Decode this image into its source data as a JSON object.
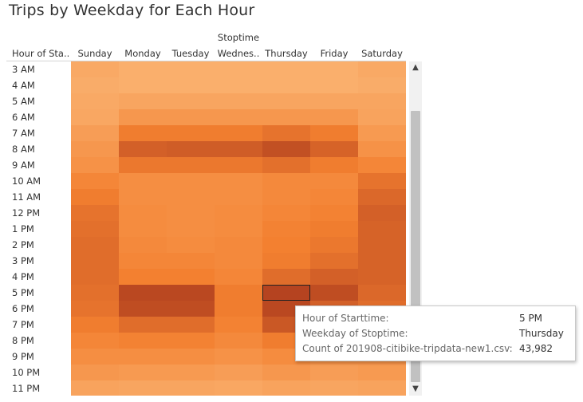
{
  "title": "Trips by Weekday for Each Hour",
  "chart_data": {
    "type": "heatmap",
    "column_group_label": "Stoptime",
    "row_header": "Hour of Sta..",
    "columns": [
      "Sunday",
      "Monday",
      "Tuesday",
      "Wednes..",
      "Thursday",
      "Friday",
      "Saturday"
    ],
    "rows": [
      "3 AM",
      "4 AM",
      "5 AM",
      "6 AM",
      "7 AM",
      "8 AM",
      "9 AM",
      "10 AM",
      "11 AM",
      "12 PM",
      "1 PM",
      "2 PM",
      "3 PM",
      "4 PM",
      "5 PM",
      "6 PM",
      "7 PM",
      "8 PM",
      "9 PM",
      "10 PM",
      "11 PM"
    ],
    "values": [
      [
        0.25,
        0.2,
        0.2,
        0.2,
        0.2,
        0.2,
        0.25
      ],
      [
        0.22,
        0.2,
        0.2,
        0.2,
        0.2,
        0.2,
        0.22
      ],
      [
        0.25,
        0.28,
        0.28,
        0.28,
        0.28,
        0.28,
        0.28
      ],
      [
        0.27,
        0.4,
        0.4,
        0.4,
        0.4,
        0.4,
        0.3
      ],
      [
        0.35,
        0.62,
        0.62,
        0.62,
        0.68,
        0.62,
        0.38
      ],
      [
        0.4,
        0.8,
        0.82,
        0.82,
        0.9,
        0.78,
        0.45
      ],
      [
        0.45,
        0.65,
        0.65,
        0.65,
        0.7,
        0.62,
        0.55
      ],
      [
        0.55,
        0.48,
        0.48,
        0.48,
        0.52,
        0.52,
        0.68
      ],
      [
        0.62,
        0.48,
        0.48,
        0.48,
        0.52,
        0.55,
        0.75
      ],
      [
        0.68,
        0.5,
        0.48,
        0.5,
        0.55,
        0.58,
        0.8
      ],
      [
        0.7,
        0.5,
        0.48,
        0.5,
        0.58,
        0.62,
        0.78
      ],
      [
        0.72,
        0.52,
        0.5,
        0.52,
        0.6,
        0.65,
        0.78
      ],
      [
        0.72,
        0.55,
        0.55,
        0.52,
        0.62,
        0.7,
        0.78
      ],
      [
        0.72,
        0.6,
        0.6,
        0.55,
        0.72,
        0.8,
        0.78
      ],
      [
        0.7,
        0.95,
        0.95,
        0.62,
        0.98,
        0.92,
        0.75
      ],
      [
        0.68,
        0.92,
        0.92,
        0.62,
        0.95,
        0.8,
        0.72
      ],
      [
        0.62,
        0.72,
        0.72,
        0.58,
        0.85,
        0.68,
        0.62
      ],
      [
        0.55,
        0.58,
        0.58,
        0.52,
        0.62,
        0.55,
        0.55
      ],
      [
        0.48,
        0.48,
        0.48,
        0.45,
        0.5,
        0.45,
        0.45
      ],
      [
        0.4,
        0.38,
        0.38,
        0.35,
        0.4,
        0.35,
        0.38
      ],
      [
        0.3,
        0.28,
        0.28,
        0.27,
        0.3,
        0.28,
        0.3
      ]
    ],
    "color_low": "#fdc68a",
    "color_high": "#b2401f",
    "selected_cell": {
      "row": 14,
      "col": 4
    }
  },
  "tooltip": {
    "rows": [
      {
        "label": "Hour of Starttime:",
        "value": "5 PM"
      },
      {
        "label": "Weekday of Stoptime:",
        "value": "Thursday"
      },
      {
        "label": "Count of 201908-citibike-tripdata-new1.csv:",
        "value": "43,982"
      }
    ]
  },
  "scrollbar": {
    "up_icon": "▲",
    "down_icon": "▼"
  }
}
